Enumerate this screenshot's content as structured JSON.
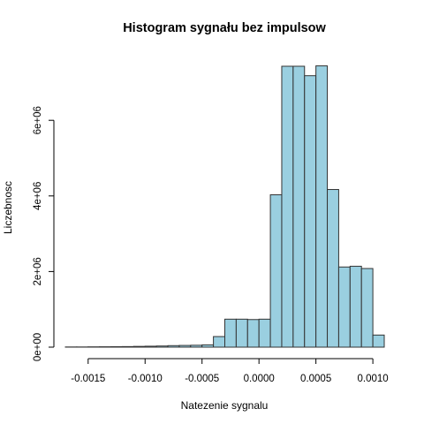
{
  "chart_data": {
    "type": "bar",
    "title": "Histogram sygnału bez impulsow",
    "xlabel": "Natezenie sygnalu",
    "ylabel": "Liczebnosc",
    "bar_color": "#9ACFE0",
    "bar_edge_color": "#333333",
    "xlim": [
      -0.0017,
      0.0011
    ],
    "ylim": [
      0,
      7500000
    ],
    "x_ticks": [
      {
        "value": -0.0015,
        "label": "-0.0015"
      },
      {
        "value": -0.001,
        "label": "-0.0010"
      },
      {
        "value": -0.0005,
        "label": "-0.0005"
      },
      {
        "value": 0.0,
        "label": "0.0000"
      },
      {
        "value": 0.0005,
        "label": "0.0005"
      },
      {
        "value": 0.001,
        "label": "0.0010"
      }
    ],
    "y_ticks": [
      {
        "value": 0,
        "label": "0e+00"
      },
      {
        "value": 2000000,
        "label": "2e+06"
      },
      {
        "value": 4000000,
        "label": "4e+06"
      },
      {
        "value": 6000000,
        "label": "6e+06"
      }
    ],
    "bin_edges": [
      -0.0017,
      -0.0016,
      -0.0015,
      -0.0014,
      -0.0013,
      -0.0012,
      -0.0011,
      -0.001,
      -0.0009,
      -0.0008,
      -0.0007,
      -0.0006,
      -0.0005,
      -0.0004,
      -0.0003,
      -0.0002,
      -0.0001,
      0.0,
      0.0001,
      0.0002,
      0.0003,
      0.0004,
      0.0005,
      0.0006,
      0.0007,
      0.0008,
      0.0009,
      0.001,
      0.0011
    ],
    "counts": [
      5000,
      5000,
      8000,
      10000,
      12000,
      15000,
      20000,
      25000,
      30000,
      40000,
      45000,
      50000,
      60000,
      280000,
      740000,
      740000,
      730000,
      740000,
      4030000,
      7430000,
      7430000,
      7180000,
      7440000,
      4170000,
      2120000,
      2140000,
      2080000,
      320000
    ]
  }
}
